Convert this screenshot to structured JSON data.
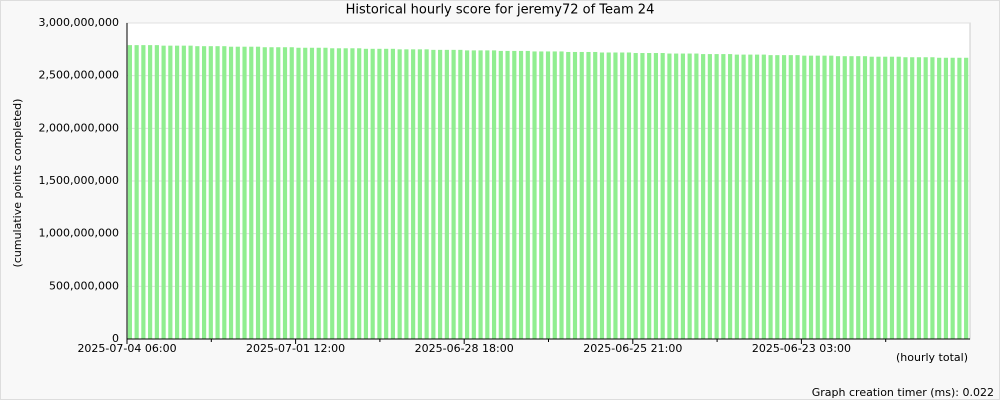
{
  "chart_data": {
    "type": "bar",
    "title": "Historical hourly score for jeremy72 of Team 24",
    "y_label": "(cumulative points completed)",
    "x_label": "(hourly total)",
    "footer": "Graph creation timer (ms): 0.022",
    "color": "#90ee90",
    "grid": true,
    "ylim": [
      0,
      3000000000
    ],
    "yticks": [
      0,
      {
        "value": 500000000,
        "label": "500,000,000"
      },
      {
        "value": 1000000000,
        "label": "1,000,000,000"
      },
      {
        "value": 1500000000,
        "label": "1,500,000,000"
      },
      {
        "value": 2000000000,
        "label": "2,000,000,000"
      },
      {
        "value": 2500000000,
        "label": "2,500,000,000"
      },
      {
        "value": 3000000000,
        "label": "3,000,000,000"
      }
    ],
    "categories": [
      "2025-07-04 06:00",
      null,
      null,
      null,
      null,
      null,
      null,
      null,
      null,
      null,
      null,
      null,
      null,
      null,
      null,
      null,
      null,
      null,
      null,
      null,
      null,
      null,
      null,
      null,
      null,
      "2025-07-01 12:00",
      null,
      null,
      null,
      null,
      null,
      null,
      null,
      null,
      null,
      null,
      null,
      null,
      null,
      null,
      null,
      null,
      null,
      null,
      null,
      null,
      null,
      null,
      null,
      null,
      "2025-06-28 18:00",
      null,
      null,
      null,
      null,
      null,
      null,
      null,
      null,
      null,
      null,
      null,
      null,
      null,
      null,
      null,
      null,
      null,
      null,
      null,
      null,
      null,
      null,
      null,
      null,
      "2025-06-25 21:00",
      null,
      null,
      null,
      null,
      null,
      null,
      null,
      null,
      null,
      null,
      null,
      null,
      null,
      null,
      null,
      null,
      null,
      null,
      null,
      null,
      null,
      null,
      null,
      null,
      "2025-06-23 03:00",
      null,
      null,
      null,
      null,
      null,
      null,
      null,
      null,
      null,
      null,
      null,
      null,
      null,
      null,
      null,
      null,
      null,
      null,
      null,
      null,
      null,
      null,
      null,
      null
    ],
    "values": [
      2790000000,
      2790000000,
      2790000000,
      2790000000,
      2790000000,
      2785000000,
      2785000000,
      2785000000,
      2785000000,
      2785000000,
      2780000000,
      2780000000,
      2780000000,
      2780000000,
      2780000000,
      2775000000,
      2775000000,
      2775000000,
      2775000000,
      2775000000,
      2770000000,
      2770000000,
      2770000000,
      2770000000,
      2770000000,
      2765000000,
      2765000000,
      2765000000,
      2765000000,
      2765000000,
      2760000000,
      2760000000,
      2760000000,
      2760000000,
      2760000000,
      2755000000,
      2755000000,
      2755000000,
      2755000000,
      2755000000,
      2750000000,
      2750000000,
      2750000000,
      2750000000,
      2750000000,
      2745000000,
      2745000000,
      2745000000,
      2745000000,
      2745000000,
      2740000000,
      2740000000,
      2740000000,
      2740000000,
      2740000000,
      2735000000,
      2735000000,
      2735000000,
      2735000000,
      2735000000,
      2730000000,
      2730000000,
      2730000000,
      2730000000,
      2730000000,
      2725000000,
      2725000000,
      2725000000,
      2725000000,
      2725000000,
      2720000000,
      2720000000,
      2720000000,
      2720000000,
      2720000000,
      2715000000,
      2715000000,
      2715000000,
      2715000000,
      2715000000,
      2710000000,
      2710000000,
      2710000000,
      2710000000,
      2710000000,
      2705000000,
      2705000000,
      2705000000,
      2705000000,
      2705000000,
      2700000000,
      2700000000,
      2700000000,
      2700000000,
      2700000000,
      2695000000,
      2695000000,
      2695000000,
      2695000000,
      2695000000,
      2690000000,
      2690000000,
      2690000000,
      2690000000,
      2690000000,
      2685000000,
      2685000000,
      2685000000,
      2685000000,
      2685000000,
      2680000000,
      2680000000,
      2680000000,
      2680000000,
      2680000000,
      2675000000,
      2675000000,
      2675000000,
      2675000000,
      2675000000,
      2670000000,
      2670000000,
      2670000000,
      2670000000,
      2670000000
    ]
  }
}
